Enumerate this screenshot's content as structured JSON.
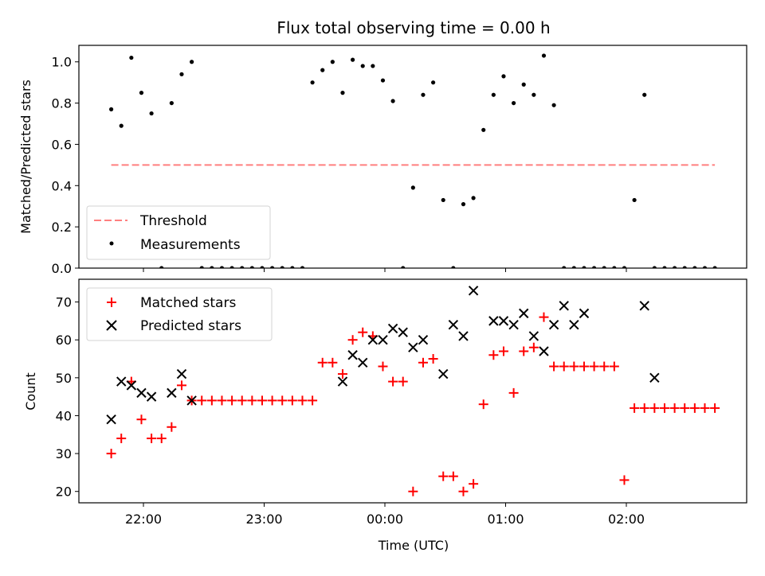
{
  "chart_data": [
    {
      "type": "scatter",
      "title": "Flux total observing time = 0.00 h",
      "xlabel": "",
      "ylabel": "Matched/Predicted stars",
      "ylim": [
        0,
        1.08
      ],
      "yticks": [
        0.0,
        0.2,
        0.4,
        0.6,
        0.8,
        1.0
      ],
      "ytick_labels": [
        "0.0",
        "0.2",
        "0.4",
        "0.6",
        "0.8",
        "1.0"
      ],
      "legend_position": "lower-left",
      "threshold": {
        "name": "Threshold",
        "value": 0.5,
        "x_start": "21:44",
        "x_end": "02:44",
        "color": "#ff7f7f"
      },
      "series": [
        {
          "name": "Measurements",
          "color": "#000000",
          "marker": "dot",
          "x": [
            "21:44",
            "21:49",
            "21:54",
            "21:59",
            "22:04",
            "22:09",
            "22:14",
            "22:19",
            "22:24",
            "22:29",
            "22:34",
            "22:39",
            "22:44",
            "22:49",
            "22:54",
            "22:59",
            "23:04",
            "23:09",
            "23:14",
            "23:19",
            "23:24",
            "23:29",
            "23:34",
            "23:39",
            "23:44",
            "23:49",
            "23:54",
            "23:59",
            "00:04",
            "00:09",
            "00:14",
            "00:19",
            "00:24",
            "00:29",
            "00:34",
            "00:39",
            "00:44",
            "00:49",
            "00:54",
            "00:59",
            "01:04",
            "01:09",
            "01:14",
            "01:19",
            "01:24",
            "01:29",
            "01:34",
            "01:39",
            "01:44",
            "01:49",
            "01:54",
            "01:59",
            "02:04",
            "02:09",
            "02:14",
            "02:19",
            "02:24",
            "02:29",
            "02:34",
            "02:39",
            "02:44"
          ],
          "y": [
            0.77,
            0.69,
            1.02,
            0.85,
            0.75,
            0.0,
            0.8,
            0.94,
            1.0,
            0.0,
            0.0,
            0.0,
            0.0,
            0.0,
            0.0,
            0.0,
            0.0,
            0.0,
            0.0,
            0.0,
            0.9,
            0.96,
            1.0,
            0.85,
            1.01,
            0.98,
            0.98,
            0.91,
            0.81,
            0.0,
            0.39,
            0.84,
            0.9,
            0.33,
            0.0,
            0.31,
            0.34,
            0.67,
            0.84,
            0.93,
            0.8,
            0.89,
            0.84,
            1.03,
            0.79,
            0.0,
            0.0,
            0.0,
            0.0,
            0.0,
            0.0,
            0.0,
            0.33,
            0.84,
            0.0,
            0.0,
            0.0,
            0.0,
            0.0,
            0.0,
            0.0
          ]
        }
      ]
    },
    {
      "type": "scatter",
      "title": "",
      "xlabel": "Time (UTC)",
      "ylabel": "Count",
      "ylim": [
        17,
        76
      ],
      "yticks": [
        20,
        30,
        40,
        50,
        60,
        70
      ],
      "ytick_labels": [
        "20",
        "30",
        "40",
        "50",
        "60",
        "70"
      ],
      "xtick_labels": [
        "22:00",
        "23:00",
        "00:00",
        "01:00",
        "02:00"
      ],
      "legend_position": "upper-left",
      "series": [
        {
          "name": "Matched stars",
          "color": "#ff0000",
          "marker": "plus",
          "x": [
            "21:44",
            "21:49",
            "21:54",
            "21:59",
            "22:04",
            "22:09",
            "22:14",
            "22:19",
            "22:24",
            "22:29",
            "22:34",
            "22:39",
            "22:44",
            "22:49",
            "22:54",
            "22:59",
            "23:04",
            "23:09",
            "23:14",
            "23:19",
            "23:24",
            "23:29",
            "23:34",
            "23:39",
            "23:44",
            "23:49",
            "23:54",
            "23:59",
            "00:04",
            "00:09",
            "00:14",
            "00:19",
            "00:24",
            "00:29",
            "00:34",
            "00:39",
            "00:44",
            "00:49",
            "00:54",
            "00:59",
            "01:04",
            "01:09",
            "01:14",
            "01:19",
            "01:24",
            "01:29",
            "01:34",
            "01:39",
            "01:44",
            "01:49",
            "01:54",
            "01:59",
            "02:04",
            "02:09",
            "02:14",
            "02:19",
            "02:24",
            "02:29",
            "02:34",
            "02:39",
            "02:44"
          ],
          "y": [
            30,
            34,
            49,
            39,
            34,
            34,
            37,
            48,
            44,
            44,
            44,
            44,
            44,
            44,
            44,
            44,
            44,
            44,
            44,
            44,
            44,
            54,
            54,
            51,
            60,
            62,
            61,
            53,
            49,
            49,
            20,
            54,
            55,
            24,
            24,
            20,
            22,
            43,
            56,
            57,
            46,
            57,
            58,
            66,
            53,
            53,
            53,
            53,
            53,
            53,
            53,
            23,
            42,
            42,
            42,
            42,
            42,
            42,
            42,
            42,
            42
          ]
        },
        {
          "name": "Predicted stars",
          "color": "#000000",
          "marker": "x",
          "x": [
            "21:44",
            "21:49",
            "21:54",
            "21:59",
            "22:04",
            "22:14",
            "22:19",
            "22:24",
            "23:39",
            "23:44",
            "23:49",
            "23:54",
            "23:59",
            "00:04",
            "00:09",
            "00:14",
            "00:19",
            "00:29",
            "00:34",
            "00:39",
            "00:44",
            "00:54",
            "00:59",
            "01:04",
            "01:09",
            "01:14",
            "01:19",
            "01:24",
            "01:29",
            "01:34",
            "01:39",
            "02:09",
            "02:14"
          ],
          "y": [
            39,
            49,
            48,
            46,
            45,
            46,
            51,
            44,
            49,
            56,
            54,
            60,
            60,
            63,
            62,
            58,
            60,
            51,
            64,
            61,
            73,
            65,
            65,
            64,
            67,
            61,
            57,
            64,
            69,
            64,
            67,
            69,
            50
          ]
        }
      ]
    }
  ]
}
